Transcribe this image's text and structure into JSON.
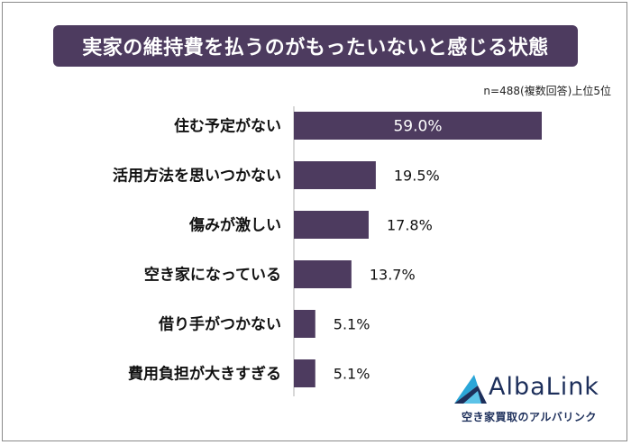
{
  "chart_data": {
    "type": "bar",
    "orientation": "horizontal",
    "title": "実家の維持費を払うのがもったいないと感じる状態",
    "note": "n=488(複数回答)上位5位",
    "categories": [
      "住む予定がない",
      "活用方法を思いつかない",
      "傷みが激しい",
      "空き家になっている",
      "借り手がつかない",
      "費用負担が大きすぎる"
    ],
    "values": [
      59.0,
      19.5,
      17.8,
      13.7,
      5.1,
      5.1
    ],
    "value_labels": [
      "59.0%",
      "19.5%",
      "17.8%",
      "13.7%",
      "5.1%",
      "5.1%"
    ],
    "xlim": [
      0,
      59.0
    ],
    "grid": false,
    "bar_color": "#4d3b5f"
  },
  "brand": {
    "name": "AlbaLink",
    "tagline": "空き家買取のアルバリンク",
    "colors": {
      "primary": "#1d2f5b",
      "accent": "#2aa6d8"
    }
  }
}
